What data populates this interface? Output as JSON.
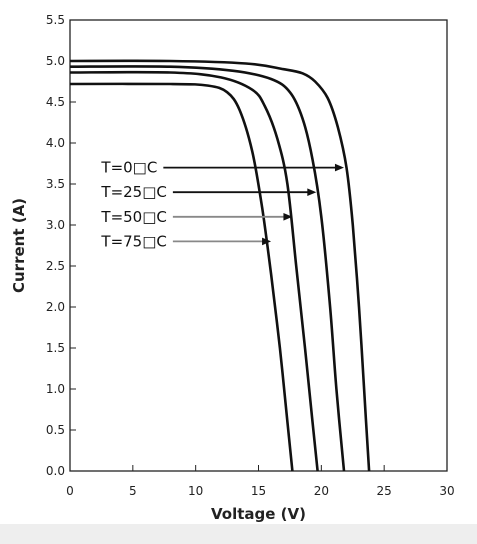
{
  "chart_data": {
    "type": "line",
    "xlabel": "Voltage (V)",
    "ylabel": "Current (A)",
    "xlim": [
      0,
      30
    ],
    "ylim": [
      0,
      5.5
    ],
    "xticks": [
      0,
      5,
      10,
      15,
      20,
      25,
      30
    ],
    "yticks": [
      0.0,
      0.5,
      1.0,
      1.5,
      2.0,
      2.5,
      3.0,
      3.5,
      4.0,
      4.5,
      5.0,
      5.5
    ],
    "grid": false,
    "legend": "none",
    "series": [
      {
        "name": "T=0□C",
        "color": "#111111",
        "points": [
          [
            0,
            5.0
          ],
          [
            8,
            5.0
          ],
          [
            14,
            4.97
          ],
          [
            17,
            4.9
          ],
          [
            18.5,
            4.85
          ],
          [
            19.5,
            4.75
          ],
          [
            20.5,
            4.55
          ],
          [
            21.3,
            4.2
          ],
          [
            22,
            3.7
          ],
          [
            22.5,
            3.0
          ],
          [
            23,
            2.0
          ],
          [
            23.4,
            1.0
          ],
          [
            23.8,
            0.0
          ]
        ]
      },
      {
        "name": "T=25□C",
        "color": "#111111",
        "points": [
          [
            0,
            4.93
          ],
          [
            8,
            4.93
          ],
          [
            13,
            4.88
          ],
          [
            16,
            4.78
          ],
          [
            17.5,
            4.62
          ],
          [
            18.5,
            4.3
          ],
          [
            19.3,
            3.8
          ],
          [
            20,
            3.1
          ],
          [
            20.7,
            2.0
          ],
          [
            21.2,
            1.0
          ],
          [
            21.8,
            0.0
          ]
        ]
      },
      {
        "name": "T=50□C",
        "color": "#111111",
        "points": [
          [
            0,
            4.86
          ],
          [
            8,
            4.86
          ],
          [
            12,
            4.8
          ],
          [
            14.5,
            4.65
          ],
          [
            15.5,
            4.45
          ],
          [
            16.5,
            4.05
          ],
          [
            17.3,
            3.5
          ],
          [
            18,
            2.5
          ],
          [
            18.7,
            1.5
          ],
          [
            19.3,
            0.6
          ],
          [
            19.7,
            0.0
          ]
        ]
      },
      {
        "name": "T=75□C",
        "color": "#111111",
        "points": [
          [
            0,
            4.72
          ],
          [
            8,
            4.72
          ],
          [
            11,
            4.7
          ],
          [
            12.5,
            4.62
          ],
          [
            13.5,
            4.4
          ],
          [
            14.5,
            3.9
          ],
          [
            15.3,
            3.2
          ],
          [
            16,
            2.4
          ],
          [
            16.7,
            1.5
          ],
          [
            17.3,
            0.6
          ],
          [
            17.7,
            0.0
          ]
        ]
      }
    ],
    "annotations": [
      {
        "text": "T=0□C",
        "label_at": [
          2.5,
          3.7
        ],
        "arrow_to": [
          21.8,
          3.7
        ],
        "arrow_color": "#111111"
      },
      {
        "text": "T=25□C",
        "label_at": [
          2.5,
          3.4
        ],
        "arrow_to": [
          19.6,
          3.4
        ],
        "arrow_color": "#111111"
      },
      {
        "text": "T=50□C",
        "label_at": [
          2.5,
          3.1
        ],
        "arrow_to": [
          17.7,
          3.1
        ],
        "arrow_color": "#888888"
      },
      {
        "text": "T=75□C",
        "label_at": [
          2.5,
          2.8
        ],
        "arrow_to": [
          16.0,
          2.8
        ],
        "arrow_color": "#888888"
      }
    ]
  }
}
